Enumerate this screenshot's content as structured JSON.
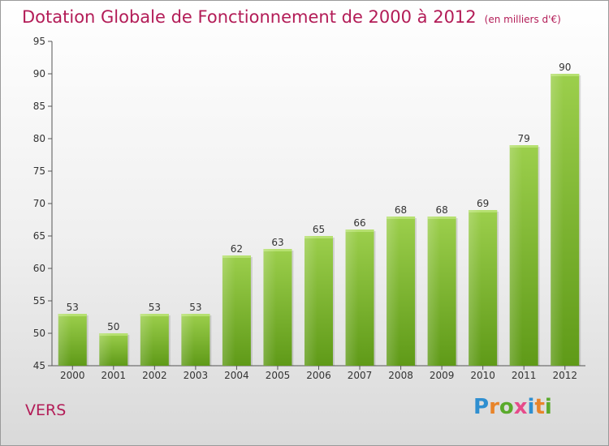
{
  "title": "Dotation Globale de Fonctionnement de 2000 à 2012",
  "subtitle": "(en milliers d'€)",
  "commune": "VERS",
  "logo": {
    "text": "Proxiti",
    "colors": [
      "#2f8fd0",
      "#e8842a",
      "#5aaa2c",
      "#e64b8a",
      "#2f8fd0",
      "#e8842a",
      "#5aaa2c"
    ]
  },
  "chart_data": {
    "type": "bar",
    "categories": [
      "2000",
      "2001",
      "2002",
      "2003",
      "2004",
      "2005",
      "2006",
      "2007",
      "2008",
      "2009",
      "2010",
      "2011",
      "2012"
    ],
    "values": [
      53,
      50,
      53,
      53,
      62,
      63,
      65,
      66,
      68,
      68,
      69,
      79,
      90
    ],
    "ylim": [
      45,
      95
    ],
    "yticks": [
      45,
      50,
      55,
      60,
      65,
      70,
      75,
      80,
      85,
      90,
      95
    ],
    "grid": false,
    "colors": {
      "bar_top": "#9ccf4c",
      "bar_bottom": "#5f9a18",
      "text": "#333333",
      "axis": "#555555",
      "title": "#b31c57"
    }
  }
}
